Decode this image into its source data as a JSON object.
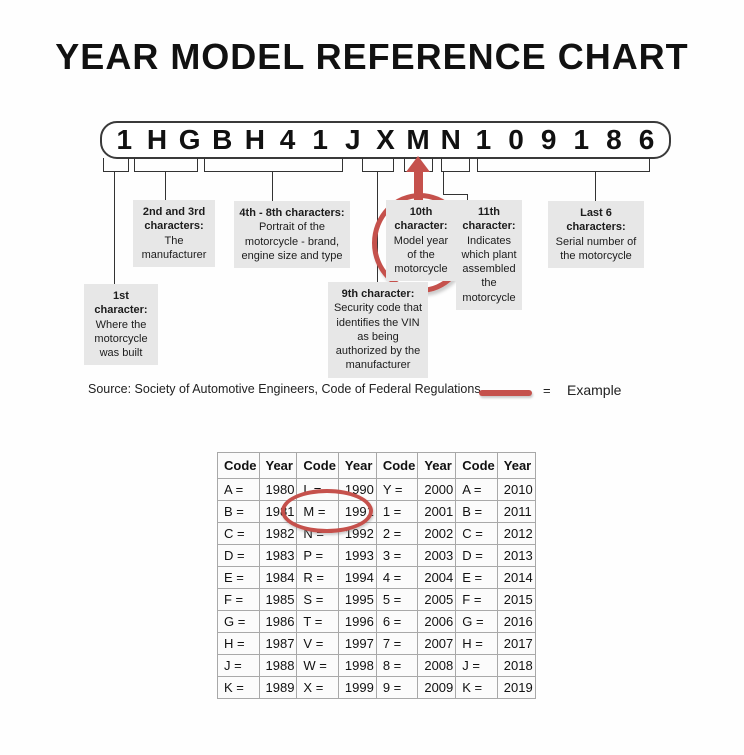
{
  "title": "YEAR MODEL REFERENCE CHART",
  "vin": {
    "characters": [
      "1",
      "H",
      "G",
      "B",
      "H",
      "4",
      "1",
      "J",
      "X",
      "M",
      "N",
      "1",
      "0",
      "9",
      "1",
      "8",
      "6"
    ]
  },
  "callouts": {
    "first": {
      "heading": "1st character:",
      "body": "Where the motorcycle was built"
    },
    "second_third": {
      "heading": "2nd and 3rd characters:",
      "body": "The manufacturer"
    },
    "fourth_eighth": {
      "heading": "4th - 8th characters:",
      "body": "Portrait of the motorcycle - brand, engine size and type"
    },
    "ninth": {
      "heading": "9th character:",
      "body": "Security code that identifies the VIN as being authorized by the manufacturer"
    },
    "tenth": {
      "heading": "10th character:",
      "body": "Model year of the motorcycle"
    },
    "eleventh": {
      "heading": "11th character:",
      "body": "Indicates which plant assembled the motorcycle"
    },
    "last_six": {
      "heading": "Last 6 characters:",
      "body": "Serial number of the motorcycle"
    }
  },
  "source_line": {
    "text": "Source:  Society of Automotive Engineers, Code of Federal Regulations"
  },
  "legend": {
    "symbol": "=",
    "label": "Example"
  },
  "colors": {
    "accent_red": "#c5514c",
    "callout_bg": "#e7e7e7"
  },
  "chart_data": {
    "type": "table",
    "columns": [
      "Code",
      "Year",
      "Code",
      "Year",
      "Code",
      "Year",
      "Code",
      "Year"
    ],
    "rows": [
      [
        "A =",
        "1980",
        "L =",
        "1990",
        "Y =",
        "2000",
        "A =",
        "2010"
      ],
      [
        "B =",
        "1981",
        "M =",
        "1991",
        "1 =",
        "2001",
        "B =",
        "2011"
      ],
      [
        "C =",
        "1982",
        "N =",
        "1992",
        "2 =",
        "2002",
        "C =",
        "2012"
      ],
      [
        "D =",
        "1983",
        "P =",
        "1993",
        "3 =",
        "2003",
        "D =",
        "2013"
      ],
      [
        "E =",
        "1984",
        "R =",
        "1994",
        "4 =",
        "2004",
        "E =",
        "2014"
      ],
      [
        "F =",
        "1985",
        "S =",
        "1995",
        "5 =",
        "2005",
        "F =",
        "2015"
      ],
      [
        "G =",
        "1986",
        "T =",
        "1996",
        "6 =",
        "2006",
        "G =",
        "2016"
      ],
      [
        "H =",
        "1987",
        "V =",
        "1997",
        "7 =",
        "2007",
        "H =",
        "2017"
      ],
      [
        "J =",
        "1988",
        "W =",
        "1998",
        "8 =",
        "2008",
        "J =",
        "2018"
      ],
      [
        "K =",
        "1989",
        "X =",
        "1999",
        "9 =",
        "2009",
        "K =",
        "2019"
      ]
    ],
    "circled": {
      "code": "M =",
      "year": "1991"
    }
  }
}
